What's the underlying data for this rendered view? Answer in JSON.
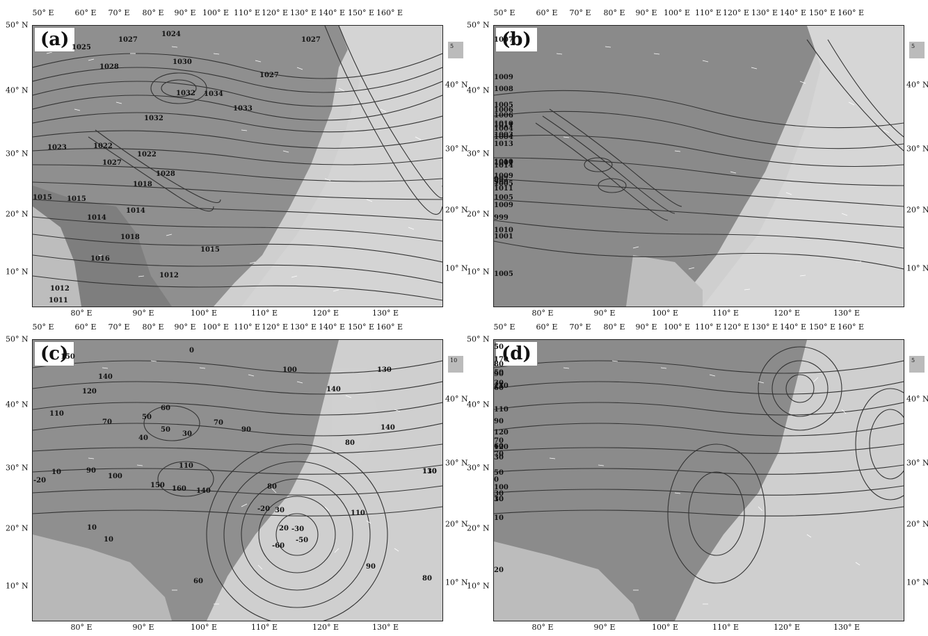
{
  "panels": [
    {
      "id": "a",
      "label": "(a)",
      "top_labels": [
        "50° E",
        "60° E",
        "70° E",
        "80° E",
        "90° E",
        "100° E",
        "110° E",
        "120° E",
        "130° E",
        "140° E",
        "150° E",
        "160° E"
      ],
      "bottom_labels": [
        "80° E",
        "90° E",
        "100° E",
        "110° E",
        "120° E",
        "130° E"
      ],
      "left_labels": [
        "50° N",
        "40° N",
        "30° N",
        "20° N",
        "10° N"
      ],
      "right_labels": [
        "40° N",
        "30° N",
        "20° N",
        "10° N"
      ],
      "ref_vector": "5",
      "contour_labels": [
        "1027",
        "1025",
        "1024",
        "1028",
        "1030",
        "1027",
        "1027",
        "1032",
        "1034",
        "1033",
        "1032",
        "1023",
        "1022",
        "1022",
        "1027",
        "1028",
        "1018",
        "1015",
        "1015",
        "1014",
        "1014",
        "1018",
        "1016",
        "1015",
        "1012",
        "1012",
        "1011"
      ]
    },
    {
      "id": "b",
      "label": "(b)",
      "top_labels": [
        "50° E",
        "60° E",
        "70° E",
        "80° E",
        "90° E",
        "100° E",
        "110° E",
        "120° E",
        "130° E",
        "140° E",
        "150° E",
        "160° E"
      ],
      "bottom_labels": [
        "80° E",
        "90° E",
        "100° E",
        "110° E",
        "120° E",
        "130° E"
      ],
      "left_labels": [
        "50° N",
        "40° N",
        "30° N",
        "20° N",
        "10° N"
      ],
      "right_labels": [
        "40° N",
        "30° N",
        "20° N",
        "10° N"
      ],
      "ref_vector": "5",
      "contour_labels": [
        "1007",
        "1009",
        "1008",
        "1006",
        "1005",
        "1006",
        "1004",
        "1011",
        "1010",
        "1004",
        "1003",
        "1013",
        "1014",
        "1010",
        "1009",
        "1001",
        "997",
        "999",
        "1005",
        "1011",
        "1005",
        "1009",
        "999",
        "1001",
        "1005",
        "1010"
      ]
    },
    {
      "id": "c",
      "label": "(c)",
      "top_labels": [
        "50° E",
        "60° E",
        "70° E",
        "80° E",
        "90° E",
        "100° E",
        "110° E",
        "120° E",
        "130° E",
        "140° E",
        "150° E",
        "160° E"
      ],
      "bottom_labels": [
        "80° E",
        "90° E",
        "100° E",
        "110° E",
        "120° E",
        "130° E"
      ],
      "left_labels": [
        "50° N",
        "40° N",
        "30° N",
        "20° N",
        "10° N"
      ],
      "right_labels": [
        "40° N",
        "30° N",
        "20° N",
        "10° N"
      ],
      "ref_vector": "10",
      "contour_labels": [
        "150",
        "0",
        "100",
        "140",
        "130",
        "120",
        "110",
        "140",
        "50",
        "60",
        "70",
        "50",
        "40",
        "30",
        "70",
        "90",
        "80",
        "140",
        "130",
        "-20",
        "10",
        "90",
        "100",
        "110",
        "150",
        "160",
        "140",
        "80",
        "110",
        "-20",
        "30",
        "20",
        "-30",
        "-50",
        "-60",
        "10",
        "10",
        "60",
        "90",
        "80",
        "110"
      ]
    },
    {
      "id": "d",
      "label": "(d)",
      "top_labels": [
        "50° E",
        "60° E",
        "70° E",
        "80° E",
        "90° E",
        "100° E",
        "110° E",
        "120° E",
        "130° E",
        "140° E",
        "150° E",
        "160° E"
      ],
      "bottom_labels": [
        "80° E",
        "90° E",
        "100° E",
        "110° E",
        "120° E",
        "130° E"
      ],
      "left_labels": [
        "50° N",
        "40° N",
        "30° N",
        "20° N",
        "10° N"
      ],
      "right_labels": [
        "40° N",
        "30° N",
        "20° N",
        "10° N"
      ],
      "ref_vector": "5",
      "contour_labels": [
        "50",
        "170",
        "90",
        "80",
        "110",
        "50",
        "60",
        "30",
        "110",
        "120",
        "90",
        "70",
        "60",
        "30",
        "70",
        "50",
        "100",
        "120",
        "0",
        "10",
        "30",
        "30",
        "10",
        "20"
      ]
    }
  ]
}
